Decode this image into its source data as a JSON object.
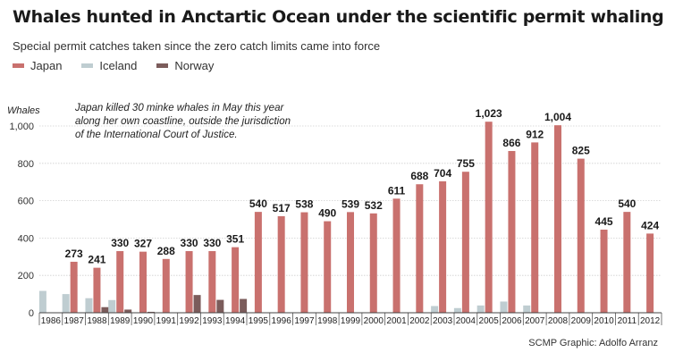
{
  "header": {
    "title": "Whales hunted in Anctartic Ocean under the scientific permit whaling",
    "subtitle": "Special permit catches taken since the zero catch limits came into force"
  },
  "annotation": "Japan killed 30 minke whales in May this year along her own coastline, outside the jurisdiction of the International Court of Justice.",
  "credit": "SCMP Graphic: Adolfo Arranz",
  "colors": {
    "japan": "#c9716e",
    "iceland": "#bfcdd1",
    "norway": "#7b5c5b",
    "grid": "#cfcfcf"
  },
  "chart_data": {
    "type": "bar",
    "title": "Whales hunted in Anctartic Ocean under the scientific permit whaling",
    "subtitle": "Special permit catches taken since the zero catch limits came into force",
    "ylabel": "Whales",
    "xlabel": "",
    "ylim": [
      0,
      1000
    ],
    "yticks": [
      "0",
      "200",
      "400",
      "600",
      "800",
      "1,000"
    ],
    "ytick_values": [
      0,
      200,
      400,
      600,
      800,
      1000
    ],
    "grid": true,
    "legend": "top-left",
    "categories": [
      "1986",
      "1987",
      "1988",
      "1989",
      "1990",
      "1991",
      "1992",
      "1993",
      "1994",
      "1995",
      "1996",
      "1997",
      "1998",
      "1999",
      "2000",
      "2001",
      "2002",
      "2003",
      "2004",
      "2005",
      "2006",
      "2007",
      "2008",
      "2009",
      "2010",
      "2011",
      "2012"
    ],
    "series": [
      {
        "name": "Japan",
        "values": [
          0,
          273,
          241,
          330,
          327,
          288,
          330,
          330,
          351,
          540,
          517,
          538,
          490,
          539,
          532,
          611,
          688,
          704,
          755,
          1023,
          866,
          912,
          1004,
          825,
          445,
          540,
          424
        ],
        "labels": [
          "",
          "273",
          "241",
          "330",
          "327",
          "288",
          "330",
          "330",
          "351",
          "540",
          "517",
          "538",
          "490",
          "539",
          "532",
          "611",
          "688",
          "704",
          "755",
          "1,023",
          "866",
          "912",
          "1,004",
          "825",
          "445",
          "540",
          "424"
        ]
      },
      {
        "name": "Iceland",
        "values": [
          117,
          100,
          78,
          68,
          0,
          0,
          0,
          0,
          0,
          0,
          0,
          0,
          0,
          0,
          0,
          0,
          0,
          36,
          25,
          39,
          60,
          39,
          0,
          0,
          0,
          0,
          0
        ]
      },
      {
        "name": "Norway",
        "values": [
          0,
          0,
          30,
          17,
          5,
          0,
          95,
          69,
          74,
          0,
          0,
          0,
          0,
          0,
          0,
          0,
          0,
          0,
          0,
          0,
          0,
          0,
          0,
          0,
          0,
          0,
          0
        ]
      }
    ]
  }
}
